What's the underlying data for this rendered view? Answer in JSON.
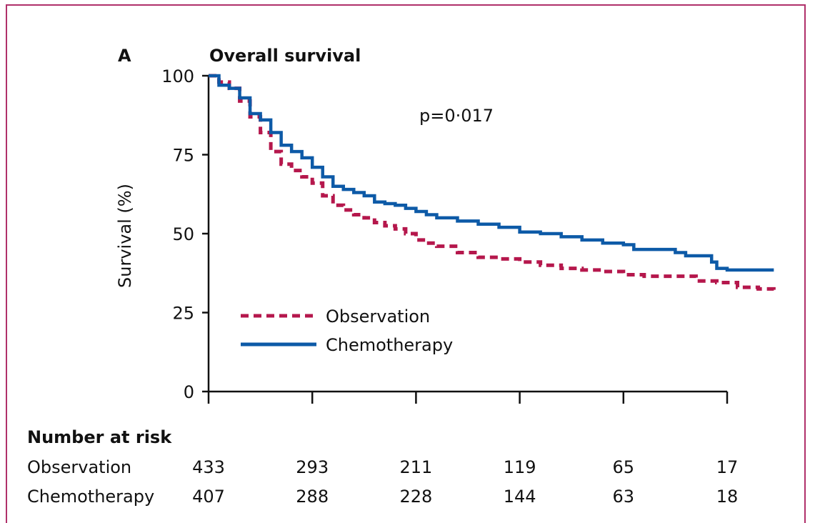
{
  "chart_data": {
    "type": "line",
    "panel_label": "A",
    "title": "Overall survival",
    "ylabel": "Survival (%)",
    "ylim": [
      0,
      100
    ],
    "yticks": [
      0,
      25,
      50,
      75,
      100
    ],
    "xlim": [
      0,
      5.45
    ],
    "xticks": [
      0,
      1,
      2,
      3,
      4,
      5
    ],
    "annotation": "p=0·017",
    "legend": {
      "position": "lower-left"
    },
    "series": [
      {
        "name": "Observation",
        "color": "#b5174c",
        "style": "dashed",
        "points": [
          [
            0,
            100
          ],
          [
            0.1,
            98
          ],
          [
            0.2,
            96
          ],
          [
            0.3,
            92
          ],
          [
            0.4,
            87
          ],
          [
            0.5,
            82
          ],
          [
            0.6,
            76
          ],
          [
            0.7,
            72
          ],
          [
            0.8,
            70
          ],
          [
            0.9,
            68
          ],
          [
            1.0,
            66
          ],
          [
            1.1,
            62
          ],
          [
            1.2,
            59
          ],
          [
            1.3,
            57.5
          ],
          [
            1.4,
            56
          ],
          [
            1.5,
            55
          ],
          [
            1.6,
            53.5
          ],
          [
            1.7,
            52.5
          ],
          [
            1.8,
            51.5
          ],
          [
            1.9,
            50
          ],
          [
            2.0,
            48
          ],
          [
            2.1,
            47
          ],
          [
            2.2,
            46
          ],
          [
            2.4,
            44
          ],
          [
            2.6,
            42.5
          ],
          [
            2.8,
            42
          ],
          [
            3.0,
            41
          ],
          [
            3.2,
            40
          ],
          [
            3.4,
            39
          ],
          [
            3.6,
            38.5
          ],
          [
            3.8,
            38
          ],
          [
            4.0,
            37
          ],
          [
            4.2,
            36.5
          ],
          [
            4.5,
            36.5
          ],
          [
            4.7,
            35
          ],
          [
            4.9,
            34.5
          ],
          [
            5.1,
            33
          ],
          [
            5.3,
            32.5
          ],
          [
            5.45,
            32
          ]
        ]
      },
      {
        "name": "Chemotherapy",
        "color": "#0d5aa7",
        "style": "solid",
        "points": [
          [
            0,
            100
          ],
          [
            0.1,
            97
          ],
          [
            0.2,
            96
          ],
          [
            0.3,
            93
          ],
          [
            0.4,
            88
          ],
          [
            0.5,
            86
          ],
          [
            0.6,
            82
          ],
          [
            0.7,
            78
          ],
          [
            0.8,
            76
          ],
          [
            0.9,
            74
          ],
          [
            1.0,
            71
          ],
          [
            1.1,
            68
          ],
          [
            1.2,
            65
          ],
          [
            1.3,
            64
          ],
          [
            1.4,
            63
          ],
          [
            1.5,
            62
          ],
          [
            1.6,
            60
          ],
          [
            1.7,
            59.5
          ],
          [
            1.8,
            59
          ],
          [
            1.9,
            58
          ],
          [
            2.0,
            57
          ],
          [
            2.1,
            56
          ],
          [
            2.2,
            55
          ],
          [
            2.4,
            54
          ],
          [
            2.6,
            53
          ],
          [
            2.8,
            52
          ],
          [
            3.0,
            50.5
          ],
          [
            3.2,
            50
          ],
          [
            3.4,
            49
          ],
          [
            3.6,
            48
          ],
          [
            3.8,
            47
          ],
          [
            4.0,
            46.5
          ],
          [
            4.1,
            45
          ],
          [
            4.4,
            45
          ],
          [
            4.5,
            44
          ],
          [
            4.6,
            43
          ],
          [
            4.8,
            43
          ],
          [
            4.85,
            41
          ],
          [
            4.9,
            39
          ],
          [
            5.0,
            38.5
          ],
          [
            5.45,
            38.5
          ]
        ]
      }
    ],
    "risk_table": {
      "heading": "Number at risk",
      "rows": [
        {
          "label": "Observation",
          "values": [
            "433",
            "293",
            "211",
            "119",
            "65",
            "17"
          ]
        },
        {
          "label": "Chemotherapy",
          "values": [
            "407",
            "288",
            "228",
            "144",
            "63",
            "18"
          ]
        }
      ]
    }
  }
}
